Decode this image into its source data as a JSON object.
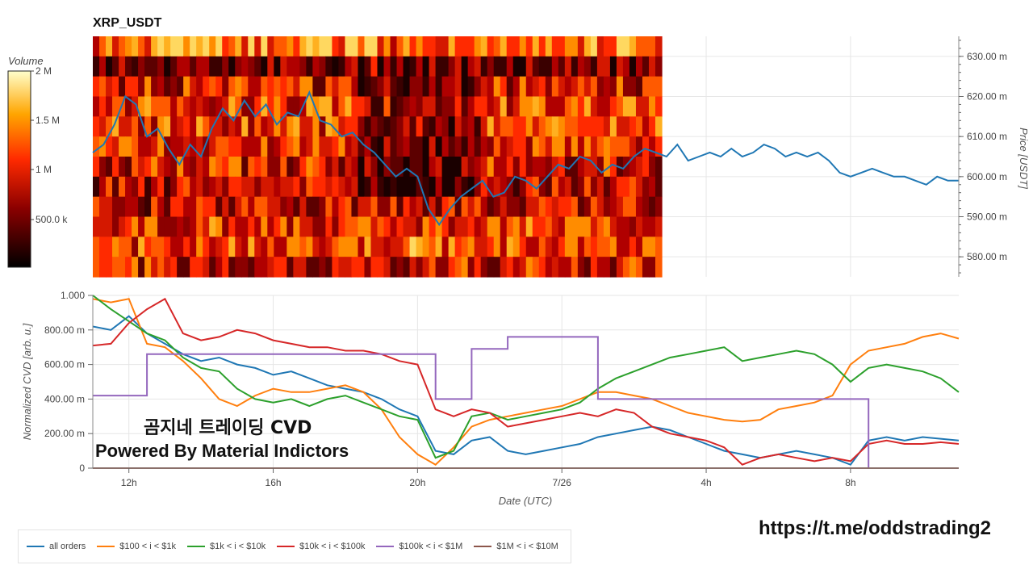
{
  "header": {
    "title": "XRP_USDT"
  },
  "watermark": {
    "line1": "곰지네 트레이딩 CVD",
    "line2": "Powered By Material Indictors",
    "link": "https://t.me/oddstrading2"
  },
  "colors": {
    "all": "#1f77b4",
    "s100": "#ff7f0e",
    "s1k": "#2ca02c",
    "s10k": "#d62728",
    "s100k": "#9467bd",
    "s1m": "#8c564b"
  },
  "chart_data": [
    {
      "type": "heatmap",
      "title": "XRP_USDT",
      "colorbar": {
        "label": "Volume",
        "ticks": [
          "2 M",
          "1.5 M",
          "1 M",
          "500.0 k"
        ],
        "range": [
          0,
          2000000
        ]
      },
      "y_axis": {
        "label": "Price [USDT]",
        "ticks": [
          "630.00 m",
          "620.00 m",
          "610.00 m",
          "600.00 m",
          "590.00 m",
          "580.00 m"
        ],
        "ylim": [
          575,
          635
        ]
      },
      "price_series": {
        "name": "price",
        "x": [
          11,
          11.3,
          11.6,
          11.9,
          12.2,
          12.5,
          12.8,
          13.1,
          13.4,
          13.7,
          14,
          14.3,
          14.6,
          14.9,
          15.2,
          15.5,
          15.8,
          16.1,
          16.4,
          16.7,
          17,
          17.3,
          17.6,
          17.9,
          18.2,
          18.5,
          18.8,
          19.1,
          19.4,
          19.7,
          20,
          20.3,
          20.6,
          20.9,
          21.2,
          21.5,
          21.8,
          22.1,
          22.4,
          22.7,
          23,
          23.3,
          23.6,
          23.9,
          24.2,
          24.5,
          24.8,
          25.1,
          25.4,
          25.7,
          26,
          26.3,
          26.6,
          26.9,
          27.2,
          27.5,
          27.8,
          28.1,
          28.4,
          28.7,
          29,
          29.3,
          29.6,
          29.9,
          30.2,
          30.5,
          30.8,
          31.1,
          31.4,
          31.7,
          32,
          32.3,
          32.6,
          32.9,
          33.2,
          33.5,
          33.8,
          34.1,
          34.4,
          34.7,
          35
        ],
        "y": [
          606,
          608,
          613,
          620,
          618,
          610,
          612,
          607,
          603,
          608,
          605,
          612,
          617,
          614,
          619,
          615,
          618,
          613,
          616,
          615,
          621,
          614,
          613,
          610,
          611,
          608,
          606,
          603,
          600,
          602,
          600,
          592,
          588,
          592,
          595,
          597,
          599,
          595,
          596,
          600,
          599,
          597,
          600,
          603,
          602,
          605,
          604,
          601,
          603,
          602,
          605,
          607,
          606,
          605,
          608,
          604,
          605,
          606,
          605,
          607,
          605,
          606,
          608,
          607,
          605,
          606,
          605,
          606,
          604,
          601,
          600,
          601,
          602,
          601,
          600,
          600,
          599,
          598,
          600,
          599,
          599
        ]
      },
      "x_range": [
        11,
        35
      ]
    },
    {
      "type": "line",
      "title": "",
      "xlabel": "Date (UTC)",
      "ylabel": "Normalized CVD [arb. u.]",
      "ylim": [
        0,
        1.0
      ],
      "y_ticks": [
        "1.000",
        "800.00 m",
        "600.00 m",
        "400.00 m",
        "200.00 m",
        "0"
      ],
      "x_ticks": [
        {
          "value": 12,
          "label": "12h"
        },
        {
          "value": 16,
          "label": "16h"
        },
        {
          "value": 20,
          "label": "20h"
        },
        {
          "value": 24,
          "label": "7/26"
        },
        {
          "value": 28,
          "label": "4h"
        },
        {
          "value": 32,
          "label": "8h"
        }
      ],
      "x_range": [
        11,
        35
      ],
      "legend_position": "bottom",
      "x": [
        11,
        11.5,
        12,
        12.5,
        13,
        13.5,
        14,
        14.5,
        15,
        15.5,
        16,
        16.5,
        17,
        17.5,
        18,
        18.5,
        19,
        19.5,
        20,
        20.5,
        21,
        21.5,
        22,
        22.5,
        23,
        23.5,
        24,
        24.5,
        25,
        25.5,
        26,
        26.5,
        27,
        27.5,
        28,
        28.5,
        29,
        29.5,
        30,
        30.5,
        31,
        31.5,
        32,
        32.5,
        33,
        33.5,
        34,
        34.5,
        35
      ],
      "series": [
        {
          "name": "all orders",
          "values": [
            0.82,
            0.8,
            0.88,
            0.78,
            0.72,
            0.66,
            0.62,
            0.64,
            0.6,
            0.58,
            0.54,
            0.56,
            0.52,
            0.48,
            0.46,
            0.44,
            0.4,
            0.34,
            0.3,
            0.1,
            0.08,
            0.16,
            0.18,
            0.1,
            0.08,
            0.1,
            0.12,
            0.14,
            0.18,
            0.2,
            0.22,
            0.24,
            0.22,
            0.18,
            0.14,
            0.1,
            0.08,
            0.06,
            0.08,
            0.1,
            0.08,
            0.06,
            0.02,
            0.16,
            0.18,
            0.16,
            0.18,
            0.17,
            0.16
          ]
        },
        {
          "name": "$100 < i < $1k",
          "values": [
            0.98,
            0.96,
            0.98,
            0.72,
            0.7,
            0.62,
            0.52,
            0.4,
            0.36,
            0.42,
            0.46,
            0.44,
            0.44,
            0.46,
            0.48,
            0.44,
            0.34,
            0.18,
            0.08,
            0.02,
            0.12,
            0.24,
            0.28,
            0.3,
            0.32,
            0.34,
            0.36,
            0.4,
            0.44,
            0.44,
            0.42,
            0.4,
            0.36,
            0.32,
            0.3,
            0.28,
            0.27,
            0.28,
            0.34,
            0.36,
            0.38,
            0.42,
            0.6,
            0.68,
            0.7,
            0.72,
            0.76,
            0.78,
            0.75
          ]
        },
        {
          "name": "$1k < i < $10k",
          "values": [
            1.0,
            0.92,
            0.85,
            0.78,
            0.74,
            0.64,
            0.58,
            0.56,
            0.46,
            0.4,
            0.38,
            0.4,
            0.36,
            0.4,
            0.42,
            0.38,
            0.34,
            0.3,
            0.28,
            0.06,
            0.1,
            0.3,
            0.32,
            0.28,
            0.3,
            0.32,
            0.34,
            0.38,
            0.46,
            0.52,
            0.56,
            0.6,
            0.64,
            0.66,
            0.68,
            0.7,
            0.62,
            0.64,
            0.66,
            0.68,
            0.66,
            0.6,
            0.5,
            0.58,
            0.6,
            0.58,
            0.56,
            0.52,
            0.44
          ]
        },
        {
          "name": "$10k < i < $100k",
          "values": [
            0.71,
            0.72,
            0.84,
            0.92,
            0.98,
            0.78,
            0.74,
            0.76,
            0.8,
            0.78,
            0.74,
            0.72,
            0.7,
            0.7,
            0.68,
            0.68,
            0.66,
            0.62,
            0.6,
            0.34,
            0.3,
            0.34,
            0.32,
            0.24,
            0.26,
            0.28,
            0.3,
            0.32,
            0.3,
            0.34,
            0.32,
            0.24,
            0.2,
            0.18,
            0.16,
            0.12,
            0.02,
            0.06,
            0.08,
            0.06,
            0.04,
            0.06,
            0.04,
            0.14,
            0.16,
            0.14,
            0.14,
            0.15,
            0.14
          ]
        },
        {
          "name": "$100k < i < $1M",
          "values": [
            0.42,
            0.42,
            0.42,
            0.66,
            0.66,
            0.66,
            0.66,
            0.66,
            0.66,
            0.66,
            0.66,
            0.66,
            0.66,
            0.66,
            0.66,
            0.66,
            0.66,
            0.66,
            0.66,
            0.4,
            0.4,
            0.69,
            0.69,
            0.76,
            0.76,
            0.76,
            0.76,
            0.76,
            0.4,
            0.4,
            0.4,
            0.4,
            0.4,
            0.4,
            0.4,
            0.4,
            0.4,
            0.4,
            0.4,
            0.4,
            0.4,
            0.4,
            0.4,
            0.0,
            0.0,
            0.0,
            0.0,
            0.0,
            0.0
          ]
        },
        {
          "name": "$1M < i < $10M",
          "values": [
            0,
            0,
            0,
            0,
            0,
            0,
            0,
            0,
            0,
            0,
            0,
            0,
            0,
            0,
            0,
            0,
            0,
            0,
            0,
            0,
            0,
            0,
            0,
            0,
            0,
            0,
            0,
            0,
            0,
            0,
            0,
            0,
            0,
            0,
            0,
            0,
            0,
            0,
            0,
            0,
            0,
            0,
            0,
            0,
            0,
            0,
            0,
            0,
            0
          ]
        }
      ]
    }
  ]
}
